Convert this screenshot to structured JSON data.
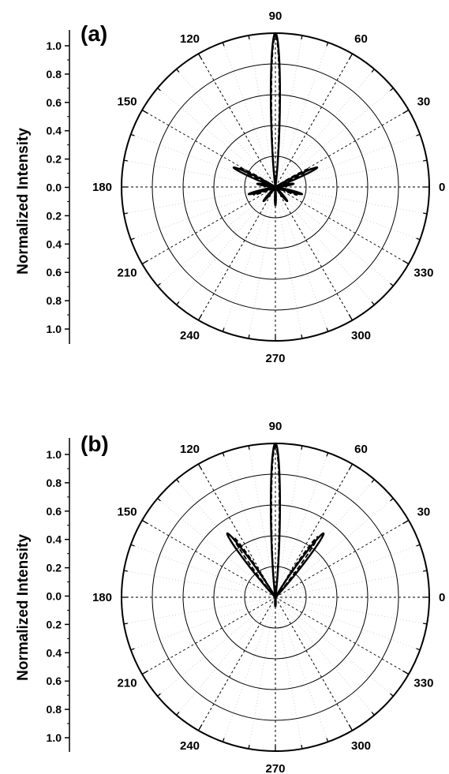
{
  "chart_data": [
    {
      "type": "polar",
      "panel_label": "(a)",
      "ylabel": "Normalized Intensity",
      "r_ticks": [
        "1.0",
        "0.8",
        "0.6",
        "0.4",
        "0.2",
        "0.0",
        "0.2",
        "0.4",
        "0.6",
        "0.8",
        "1.0"
      ],
      "angle_ticks": [
        "0",
        "30",
        "60",
        "90",
        "120",
        "150",
        "180",
        "210",
        "240",
        "270",
        "300",
        "330"
      ],
      "rlim": [
        0,
        1.0
      ],
      "grid": true,
      "series": [
        {
          "style": "solid",
          "lobes": [
            {
              "angle": 90,
              "r": 1.0,
              "width": 4
            },
            {
              "angle": 25,
              "r": 0.3,
              "width": 4
            },
            {
              "angle": 155,
              "r": 0.3,
              "width": 4
            },
            {
              "angle": 10,
              "r": 0.12,
              "width": 5
            },
            {
              "angle": 170,
              "r": 0.12,
              "width": 5
            },
            {
              "angle": 195,
              "r": 0.18,
              "width": 4
            },
            {
              "angle": 345,
              "r": 0.18,
              "width": 4
            },
            {
              "angle": 230,
              "r": 0.12,
              "width": 5
            },
            {
              "angle": 310,
              "r": 0.12,
              "width": 5
            },
            {
              "angle": 270,
              "r": 0.12,
              "width": 4
            }
          ]
        },
        {
          "style": "dashed",
          "lobes": [
            {
              "angle": 90,
              "r": 0.98,
              "width": 3.5
            },
            {
              "angle": 28,
              "r": 0.26,
              "width": 4
            },
            {
              "angle": 152,
              "r": 0.26,
              "width": 4
            },
            {
              "angle": 200,
              "r": 0.15,
              "width": 4
            },
            {
              "angle": 340,
              "r": 0.15,
              "width": 4
            },
            {
              "angle": 270,
              "r": 0.1,
              "width": 4
            }
          ]
        }
      ]
    },
    {
      "type": "polar",
      "panel_label": "(b)",
      "ylabel": "Normalized Intensity",
      "r_ticks": [
        "1.0",
        "0.8",
        "0.6",
        "0.4",
        "0.2",
        "0.0",
        "0.2",
        "0.4",
        "0.6",
        "0.8",
        "1.0"
      ],
      "angle_ticks": [
        "0",
        "30",
        "60",
        "90",
        "120",
        "150",
        "180",
        "210",
        "240",
        "270",
        "300",
        "330"
      ],
      "rlim": [
        0,
        1.0
      ],
      "grid": true,
      "series": [
        {
          "style": "solid",
          "lobes": [
            {
              "angle": 90,
              "r": 1.0,
              "width": 4
            },
            {
              "angle": 53,
              "r": 0.52,
              "width": 4
            },
            {
              "angle": 127,
              "r": 0.52,
              "width": 4
            },
            {
              "angle": 270,
              "r": 0.06,
              "width": 6
            }
          ]
        },
        {
          "style": "dashed",
          "lobes": [
            {
              "angle": 90,
              "r": 0.98,
              "width": 3.5
            },
            {
              "angle": 55,
              "r": 0.48,
              "width": 3.5
            },
            {
              "angle": 125,
              "r": 0.48,
              "width": 3.5
            },
            {
              "angle": 270,
              "r": 0.05,
              "width": 6
            }
          ]
        }
      ]
    }
  ]
}
